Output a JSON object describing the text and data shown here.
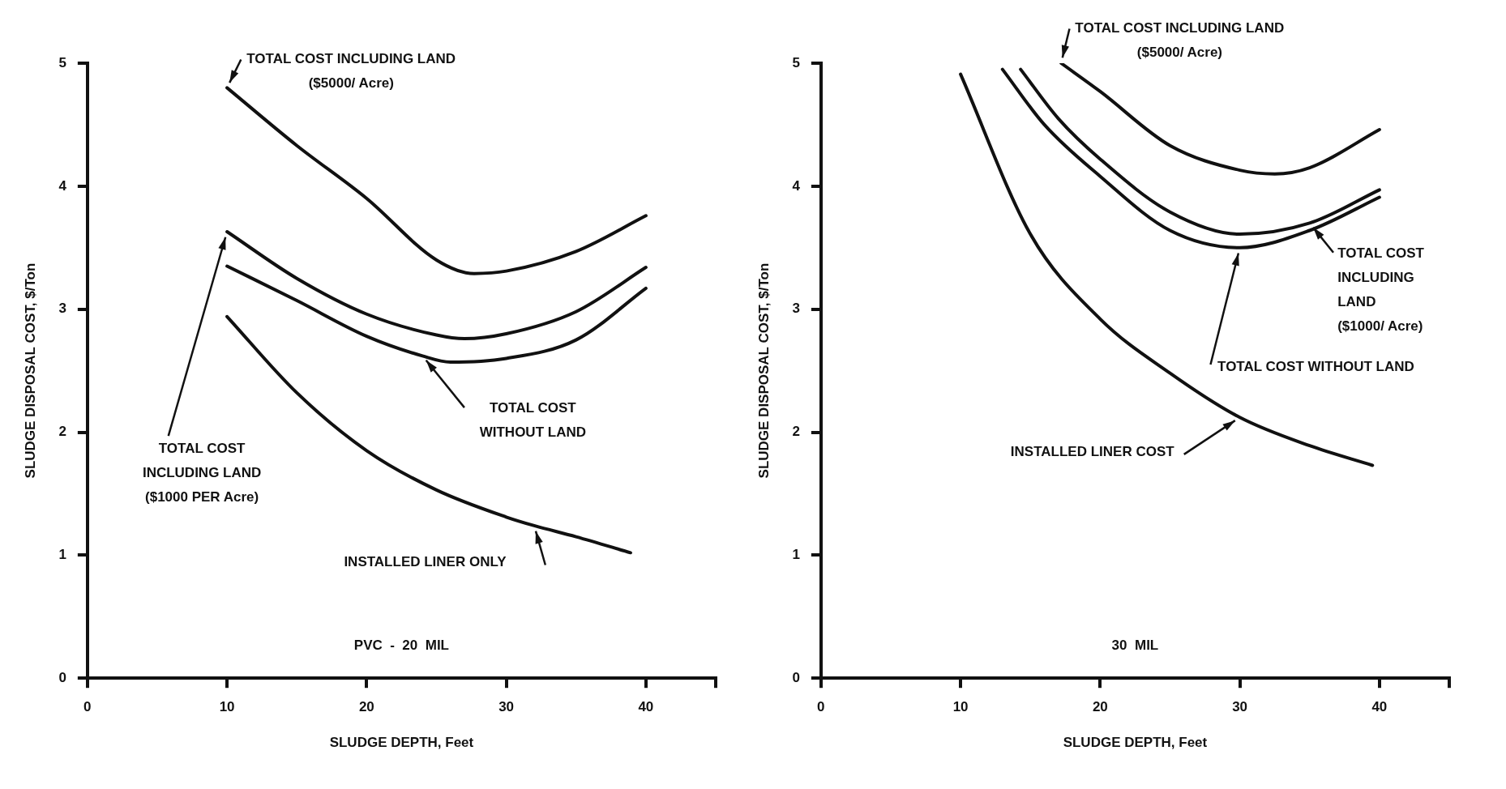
{
  "chart_data": [
    {
      "type": "line",
      "xlabel": "SLUDGE DEPTH, Feet",
      "ylabel": "SLUDGE DISPOSAL COST, $/Ton",
      "xlim": [
        0,
        45
      ],
      "ylim": [
        0,
        5
      ],
      "xticks": [
        0,
        10,
        20,
        30,
        40,
        {
          "value": 45,
          "label": null
        }
      ],
      "yticks": [
        0,
        1,
        2,
        3,
        4,
        5
      ],
      "grid": false,
      "legend": false,
      "marker": "none",
      "line_style": "solid",
      "series": [
        {
          "color": "#111111",
          "x": [
            10,
            15,
            20,
            25,
            27.7,
            30,
            35,
            40
          ],
          "values": [
            4.8,
            4.33,
            3.9,
            3.4,
            3.29,
            3.31,
            3.47,
            3.76
          ]
        },
        {
          "color": "#111111",
          "x": [
            10,
            15,
            20,
            25,
            27,
            30,
            35,
            40
          ],
          "values": [
            3.63,
            3.25,
            2.96,
            2.79,
            2.76,
            2.8,
            2.98,
            3.34
          ]
        },
        {
          "color": "#111111",
          "x": [
            10,
            15,
            20,
            24,
            26,
            30,
            35,
            40
          ],
          "values": [
            3.35,
            3.07,
            2.78,
            2.62,
            2.57,
            2.6,
            2.75,
            3.17
          ]
        },
        {
          "color": "#111111",
          "x": [
            10,
            15,
            20,
            25,
            30,
            32,
            35,
            38.9
          ],
          "values": [
            2.94,
            2.32,
            1.85,
            1.53,
            1.31,
            1.24,
            1.15,
            1.02
          ]
        }
      ],
      "annotations": [
        {
          "text": "TOTAL COST INCLUDING LAND\n($5000/ Acre)",
          "x": 10,
          "y": 4.8
        },
        {
          "text": "TOTAL COST\nINCLUDING LAND\n($1000 PER Acre)",
          "x": 10,
          "y": 3.63
        },
        {
          "text": "TOTAL COST\nWITHOUT LAND",
          "x": 24,
          "y": 2.62
        },
        {
          "text": "INSTALLED LINER ONLY",
          "x": 32,
          "y": 1.24
        },
        "PVC  -  20  MIL"
      ]
    },
    {
      "type": "line",
      "xlabel": "SLUDGE DEPTH, Feet",
      "ylabel": "SLUDGE DISPOSAL COST, $/Ton",
      "xlim": [
        0,
        45
      ],
      "ylim": [
        0,
        5
      ],
      "xticks": [
        0,
        10,
        20,
        30,
        40,
        {
          "value": 45,
          "label": null
        }
      ],
      "yticks": [
        0,
        1,
        2,
        3,
        4,
        5
      ],
      "grid": false,
      "legend": false,
      "marker": "none",
      "line_style": "solid",
      "series": [
        {
          "color": "#111111",
          "x": [
            17.2,
            20,
            25,
            30,
            32.5,
            35,
            40
          ],
          "values": [
            5.0,
            4.77,
            4.33,
            4.13,
            4.1,
            4.15,
            4.46
          ]
        },
        {
          "color": "#111111",
          "x": [
            14.3,
            17,
            20,
            25,
            30,
            35,
            40
          ],
          "values": [
            4.95,
            4.55,
            4.22,
            3.79,
            3.61,
            3.7,
            3.97
          ]
        },
        {
          "color": "#111111",
          "x": [
            13,
            16,
            20,
            25,
            30,
            35,
            40
          ],
          "values": [
            4.95,
            4.5,
            4.08,
            3.64,
            3.5,
            3.64,
            3.91
          ]
        },
        {
          "color": "#111111",
          "x": [
            10,
            15,
            20,
            25,
            30,
            35,
            39.5
          ],
          "values": [
            4.91,
            3.61,
            2.92,
            2.48,
            2.12,
            1.89,
            1.73
          ]
        }
      ],
      "annotations": [
        {
          "text": "TOTAL COST INCLUDING LAND\n($5000/ Acre)",
          "x": 17.2,
          "y": 5.0
        },
        {
          "text": "TOTAL COST\nINCLUDING\nLAND\n($1000/ Acre)",
          "x": 35,
          "y": 3.7
        },
        {
          "text": "TOTAL COST WITHOUT LAND",
          "x": 30,
          "y": 3.5
        },
        {
          "text": "INSTALLED LINER COST",
          "x": 30,
          "y": 2.12
        },
        "30  MIL"
      ]
    }
  ]
}
